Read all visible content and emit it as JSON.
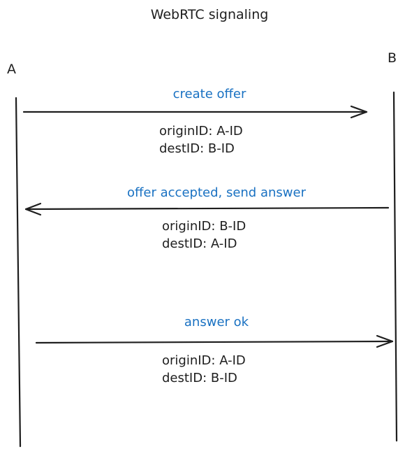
{
  "diagram": {
    "title": "WebRTC signaling",
    "actors": {
      "a": "A",
      "b": "B"
    },
    "messages": [
      {
        "label": "create offer",
        "direction": "A-to-B",
        "origin": "originID: A-ID",
        "dest": "destID: B-ID"
      },
      {
        "label": "offer accepted, send answer",
        "direction": "B-to-A",
        "origin": "originID: B-ID",
        "dest": "destID: A-ID"
      },
      {
        "label": "answer ok",
        "direction": "A-to-B",
        "origin": "originID: A-ID",
        "dest": "destID: B-ID"
      }
    ],
    "colors": {
      "label": "#1971c2",
      "stroke": "#1e1e1e"
    }
  }
}
